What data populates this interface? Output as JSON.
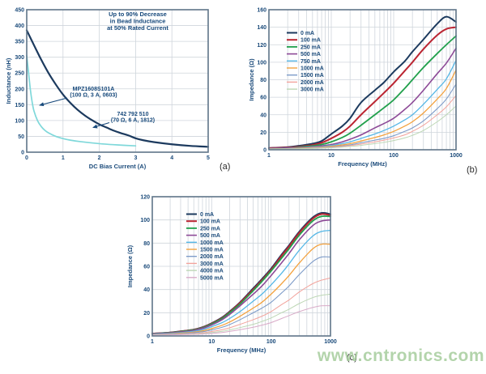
{
  "page": {
    "watermark": "www.cntronics.com",
    "watermark_color": "#a6cd9d",
    "background": "#ffffff",
    "text_color": "#1a4a7a",
    "grid_color": "#cfd5dc",
    "border_color": "#5f7589"
  },
  "chart_data": [
    {
      "id": "a",
      "label": "(a)",
      "type": "line",
      "xscale": "linear",
      "xlabel": "DC Bias Current (A)",
      "ylabel": "Inductance (nH)",
      "xlim": [
        0,
        5
      ],
      "ylim": [
        0,
        450
      ],
      "xticks": [
        0,
        1,
        2,
        3,
        4,
        5
      ],
      "yticks": [
        0,
        50,
        100,
        150,
        200,
        250,
        300,
        350,
        400,
        450
      ],
      "grid": true,
      "annotation_box": {
        "lines": [
          "Up to 90% Decrease",
          "in Bead Inductance",
          "at 50% Rated Current"
        ]
      },
      "callouts": [
        {
          "lines": [
            "MPZ1608S101A",
            "(100 Ω, 3 A, 0603)"
          ]
        },
        {
          "lines": [
            "742 792 510",
            "(70 Ω, 6 A, 1812)"
          ]
        }
      ],
      "series": [
        {
          "name": "742 792 510",
          "color": "#1c3a5e",
          "width": 2.2,
          "x": [
            0,
            0.2,
            0.4,
            0.6,
            0.8,
            1,
            1.2,
            1.4,
            1.6,
            1.8,
            2,
            2.2,
            2.4,
            2.6,
            2.8,
            3,
            3.2,
            3.5,
            4,
            4.5,
            5
          ],
          "y": [
            385,
            338,
            292,
            250,
            214,
            182,
            156,
            134,
            116,
            101,
            88,
            78,
            68,
            60,
            53,
            44,
            38,
            32,
            25,
            20,
            17
          ]
        },
        {
          "name": "MPZ1608S101A",
          "color": "#7fd8da",
          "width": 1.7,
          "x": [
            0,
            0.05,
            0.1,
            0.15,
            0.2,
            0.3,
            0.4,
            0.5,
            0.6,
            0.8,
            1,
            1.2,
            1.5,
            2,
            2.5,
            3
          ],
          "y": [
            305,
            252,
            198,
            158,
            130,
            99,
            81,
            69,
            61,
            50,
            43,
            38,
            33,
            27,
            23,
            20
          ]
        }
      ]
    },
    {
      "id": "b",
      "label": "(b)",
      "type": "line",
      "xscale": "log",
      "xlabel": "Frequency (MHz)",
      "ylabel": "Impedance (Ω)",
      "xlim": [
        1,
        1000
      ],
      "ylim": [
        0,
        160
      ],
      "xticks": [
        1,
        10,
        100,
        1000
      ],
      "yticks": [
        0,
        20,
        40,
        60,
        80,
        100,
        120,
        140,
        160
      ],
      "grid": true,
      "legend_position": "upper-left",
      "x": [
        1,
        2,
        3,
        5,
        7,
        10,
        15,
        20,
        30,
        50,
        70,
        100,
        150,
        200,
        300,
        500,
        700,
        1000
      ],
      "series": [
        {
          "name": "0 mA",
          "color": "#1c3a5e",
          "width": 2.0,
          "y": [
            2,
            3,
            4.5,
            7,
            10,
            18,
            27,
            36,
            54,
            68,
            77,
            89,
            101,
            112,
            126,
            144,
            152,
            146
          ]
        },
        {
          "name": "100 mA",
          "color": "#bb2532",
          "width": 2.0,
          "y": [
            2,
            2.5,
            3.5,
            5.5,
            8,
            13,
            20,
            27,
            40,
            55,
            65,
            76,
            90,
            100,
            115,
            131,
            138,
            140
          ]
        },
        {
          "name": "250 mA",
          "color": "#21a04c",
          "width": 1.8,
          "y": [
            1.5,
            2,
            3,
            4.5,
            6,
            9,
            14,
            19,
            28,
            40,
            48,
            57,
            70,
            80,
            94,
            110,
            120,
            130
          ]
        },
        {
          "name": "500 mA",
          "color": "#8d4a97",
          "width": 1.6,
          "y": [
            1.5,
            2,
            2.5,
            3.5,
            4.5,
            6,
            9,
            12,
            17,
            25,
            30,
            36,
            46,
            54,
            68,
            87,
            99,
            116
          ]
        },
        {
          "name": "750 mA",
          "color": "#56b7e6",
          "width": 1.3,
          "y": [
            1,
            1.5,
            2,
            3,
            3.5,
            5,
            7,
            9,
            13,
            18,
            22,
            27,
            34,
            40,
            52,
            69,
            81,
            102
          ]
        },
        {
          "name": "1000 mA",
          "color": "#f3a23f",
          "width": 1.3,
          "y": [
            1,
            1.2,
            1.8,
            2.5,
            3,
            4,
            5.5,
            7,
            10,
            14,
            17,
            21,
            27,
            32,
            42,
            58,
            70,
            91
          ]
        },
        {
          "name": "1500 mA",
          "color": "#7e9cc9",
          "width": 1.1,
          "y": [
            1,
            1.1,
            1.5,
            2,
            2.5,
            3.2,
            4.4,
            5.5,
            8,
            11,
            13,
            16,
            21,
            25,
            33,
            47,
            58,
            75
          ]
        },
        {
          "name": "2000 mA",
          "color": "#f2a39c",
          "width": 1.0,
          "y": [
            0.8,
            1,
            1.3,
            1.8,
            2.2,
            2.8,
            3.8,
            4.8,
            6.5,
            9,
            11,
            13.5,
            17,
            21,
            28,
            40,
            49,
            62
          ]
        },
        {
          "name": "3000 mA",
          "color": "#bdd7b5",
          "width": 1.0,
          "y": [
            0.8,
            1,
            1.2,
            1.5,
            1.8,
            2.3,
            3,
            3.8,
            5,
            7,
            8.5,
            10.5,
            13.5,
            16.5,
            22,
            32,
            40,
            50
          ]
        }
      ]
    },
    {
      "id": "c",
      "label": "(c)",
      "type": "line",
      "xscale": "log",
      "xlabel": "Frequency (MHz)",
      "ylabel": "Impedance (Ω)",
      "xlim": [
        1,
        1000
      ],
      "ylim": [
        0,
        120
      ],
      "xticks": [
        1,
        10,
        100,
        1000
      ],
      "yticks": [
        0,
        20,
        40,
        60,
        80,
        100,
        120
      ],
      "grid": true,
      "legend_position": "upper-left",
      "x": [
        1,
        2,
        3,
        5,
        7,
        10,
        15,
        20,
        30,
        50,
        70,
        100,
        150,
        200,
        300,
        500,
        700,
        1000
      ],
      "series": [
        {
          "name": "0 mA",
          "color": "#1c3a5e",
          "width": 2.0,
          "y": [
            2,
            3,
            4,
            5.5,
            7.5,
            11,
            16,
            21,
            29,
            41,
            49,
            58,
            70,
            78,
            90,
            102,
            106,
            105
          ]
        },
        {
          "name": "100 mA",
          "color": "#bb2532",
          "width": 2.0,
          "y": [
            2,
            2.9,
            3.9,
            5.4,
            7.3,
            10.7,
            15.5,
            20.5,
            28.5,
            40,
            48,
            57,
            69,
            77,
            89,
            101,
            105,
            104
          ]
        },
        {
          "name": "250 mA",
          "color": "#21a04c",
          "width": 1.8,
          "y": [
            1.9,
            2.8,
            3.7,
            5.2,
            7,
            10.3,
            15,
            20,
            27.5,
            39,
            47,
            56,
            67,
            75,
            87,
            99,
            103,
            103
          ]
        },
        {
          "name": "500 mA",
          "color": "#8d4a97",
          "width": 1.6,
          "y": [
            1.8,
            2.6,
            3.4,
            4.8,
            6.5,
            9.5,
            14,
            18.5,
            26,
            36,
            43,
            52,
            63,
            71,
            83,
            95,
            99,
            100
          ]
        },
        {
          "name": "1000 mA",
          "color": "#56b7e6",
          "width": 1.3,
          "y": [
            1.5,
            2.2,
            2.9,
            4,
            5.4,
            8,
            11.5,
            15,
            21,
            30,
            36,
            44,
            54,
            62,
            74,
            86,
            90,
            91
          ]
        },
        {
          "name": "1500 mA",
          "color": "#f3a23f",
          "width": 1.3,
          "y": [
            1.3,
            1.8,
            2.4,
            3.3,
            4.4,
            6.4,
            9.2,
            12,
            17,
            24,
            29,
            36,
            45,
            52,
            63,
            75,
            79,
            79
          ]
        },
        {
          "name": "2000 mA",
          "color": "#7e9cc9",
          "width": 1.1,
          "y": [
            1.2,
            1.6,
            2,
            2.8,
            3.6,
            5.2,
            7.5,
            9.8,
            14,
            20,
            24,
            29,
            37,
            43,
            53,
            64,
            68,
            68
          ]
        },
        {
          "name": "3000 mA",
          "color": "#f2a39c",
          "width": 1.0,
          "y": [
            1,
            1.3,
            1.6,
            2.1,
            2.7,
            3.8,
            5.4,
            7,
            10,
            14,
            17,
            21,
            27,
            31,
            38,
            45,
            48,
            50
          ]
        },
        {
          "name": "4000 mA",
          "color": "#bdd7b5",
          "width": 1.0,
          "y": [
            0.9,
            1.1,
            1.3,
            1.7,
            2.1,
            2.9,
            4,
            5.2,
            7.2,
            10,
            12.5,
            15.5,
            20,
            23,
            28,
            33,
            35,
            36
          ]
        },
        {
          "name": "5000 mA",
          "color": "#d9abc8",
          "width": 1.0,
          "y": [
            0.8,
            1,
            1.1,
            1.4,
            1.7,
            2.2,
            3,
            3.9,
            5.4,
            7.5,
            9.3,
            11.5,
            15,
            17.5,
            21,
            24.5,
            26,
            26
          ]
        }
      ]
    }
  ]
}
